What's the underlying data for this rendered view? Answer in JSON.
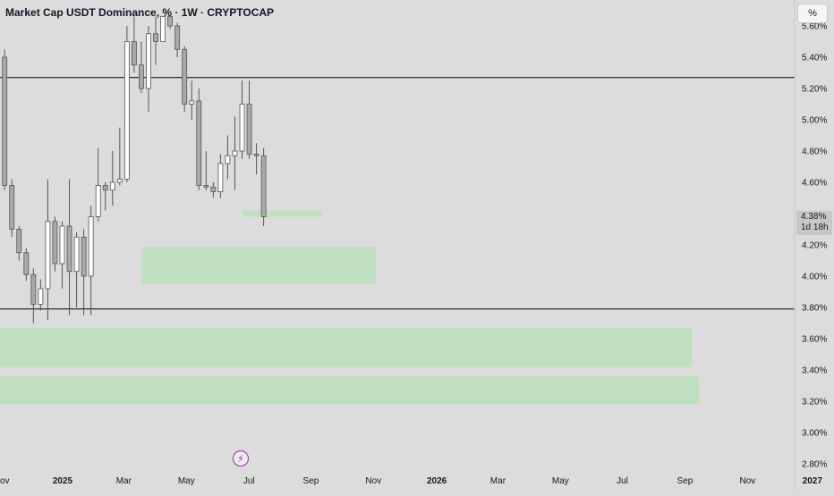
{
  "header": {
    "title": "Market Cap USDT Dominance, % · 1W · CRYPTOCAP"
  },
  "controls": {
    "scale_label": "%",
    "event_icon": "lightning-icon"
  },
  "price_badge": {
    "price": "4.38%",
    "countdown": "1d 18h"
  },
  "colors": {
    "background": "#dcdcdc",
    "up_body": "#ffffff",
    "down_body": "#a9a9a9",
    "wick": "#555555",
    "zone_fill": "#b9dfb9",
    "level_line": "#000000",
    "axis_text": "#131722",
    "event_icon": "#9c27b0"
  },
  "chart_data": {
    "type": "candlestick",
    "title": "Market Cap USDT Dominance, % · 1W · CRYPTOCAP",
    "y_ticks": [
      "2.80%",
      "3.00%",
      "3.20%",
      "3.40%",
      "3.60%",
      "3.80%",
      "4.00%",
      "4.20%",
      "4.60%",
      "4.80%",
      "5.00%",
      "5.20%",
      "5.40%",
      "5.60%"
    ],
    "y_tick_values": [
      2.8,
      3.0,
      3.2,
      3.4,
      3.6,
      3.8,
      4.0,
      4.2,
      4.6,
      4.8,
      5.0,
      5.2,
      5.4,
      5.6
    ],
    "ylim": [
      2.78,
      5.66
    ],
    "x_labels": [
      "Nov",
      "2025",
      "Mar",
      "May",
      "Jul",
      "Sep",
      "Nov",
      "2026",
      "Mar",
      "May",
      "Jul",
      "Sep",
      "Nov",
      "2027"
    ],
    "x_label_weeks": [
      -8.5,
      0,
      8.5,
      17.2,
      25.9,
      34.5,
      43.2,
      52,
      60.5,
      69.2,
      77.8,
      86.5,
      95.2,
      104.2
    ],
    "candles": [
      {
        "o": 5.4,
        "h": 5.45,
        "l": 4.55,
        "c": 4.58
      },
      {
        "o": 4.58,
        "h": 4.62,
        "l": 4.25,
        "c": 4.3
      },
      {
        "o": 4.3,
        "h": 4.32,
        "l": 4.1,
        "c": 4.15
      },
      {
        "o": 4.15,
        "h": 4.18,
        "l": 3.97,
        "c": 4.01
      },
      {
        "o": 4.01,
        "h": 4.05,
        "l": 3.7,
        "c": 3.82
      },
      {
        "o": 3.82,
        "h": 3.98,
        "l": 3.78,
        "c": 3.92
      },
      {
        "o": 3.92,
        "h": 4.62,
        "l": 3.72,
        "c": 4.35
      },
      {
        "o": 4.35,
        "h": 4.38,
        "l": 4.03,
        "c": 4.08
      },
      {
        "o": 4.08,
        "h": 4.35,
        "l": 3.92,
        "c": 4.32
      },
      {
        "o": 4.32,
        "h": 4.62,
        "l": 3.75,
        "c": 4.03
      },
      {
        "o": 4.03,
        "h": 4.28,
        "l": 3.8,
        "c": 4.25
      },
      {
        "o": 4.25,
        "h": 4.3,
        "l": 3.75,
        "c": 4.0
      },
      {
        "o": 4.0,
        "h": 4.45,
        "l": 3.75,
        "c": 4.38
      },
      {
        "o": 4.38,
        "h": 4.82,
        "l": 4.35,
        "c": 4.58
      },
      {
        "o": 4.58,
        "h": 4.6,
        "l": 4.42,
        "c": 4.55
      },
      {
        "o": 4.55,
        "h": 4.8,
        "l": 4.45,
        "c": 4.6
      },
      {
        "o": 4.6,
        "h": 4.95,
        "l": 4.58,
        "c": 4.62
      },
      {
        "o": 4.62,
        "h": 5.6,
        "l": 4.6,
        "c": 5.5
      },
      {
        "o": 5.5,
        "h": 5.66,
        "l": 5.3,
        "c": 5.35
      },
      {
        "o": 5.35,
        "h": 5.5,
        "l": 5.17,
        "c": 5.2
      },
      {
        "o": 5.2,
        "h": 5.6,
        "l": 5.05,
        "c": 5.55
      },
      {
        "o": 5.55,
        "h": 5.66,
        "l": 5.35,
        "c": 5.5
      },
      {
        "o": 5.5,
        "h": 5.66,
        "l": 5.5,
        "c": 5.66
      },
      {
        "o": 5.66,
        "h": 5.66,
        "l": 5.58,
        "c": 5.6
      },
      {
        "o": 5.6,
        "h": 5.62,
        "l": 5.4,
        "c": 5.45
      },
      {
        "o": 5.45,
        "h": 5.47,
        "l": 5.05,
        "c": 5.1
      },
      {
        "o": 5.1,
        "h": 5.25,
        "l": 5.0,
        "c": 5.12
      },
      {
        "o": 5.12,
        "h": 5.2,
        "l": 4.55,
        "c": 4.58
      },
      {
        "o": 4.58,
        "h": 4.8,
        "l": 4.55,
        "c": 4.57
      },
      {
        "o": 4.57,
        "h": 4.6,
        "l": 4.5,
        "c": 4.54
      },
      {
        "o": 4.54,
        "h": 4.78,
        "l": 4.5,
        "c": 4.72
      },
      {
        "o": 4.72,
        "h": 4.9,
        "l": 4.62,
        "c": 4.77
      },
      {
        "o": 4.77,
        "h": 5.02,
        "l": 4.55,
        "c": 4.8
      },
      {
        "o": 4.8,
        "h": 5.25,
        "l": 4.75,
        "c": 5.1
      },
      {
        "o": 5.1,
        "h": 5.25,
        "l": 4.75,
        "c": 4.78
      },
      {
        "o": 4.78,
        "h": 4.85,
        "l": 4.65,
        "c": 4.77
      },
      {
        "o": 4.77,
        "h": 4.82,
        "l": 4.32,
        "c": 4.38
      }
    ],
    "horizontal_levels": [
      5.27,
      3.79
    ],
    "zones": [
      {
        "week_start": 25,
        "week_end": 36,
        "low": 4.38,
        "high": 4.42
      },
      {
        "week_start": 11,
        "week_end": 43.5,
        "low": 3.95,
        "high": 4.19
      },
      {
        "week_start": -10,
        "week_end": 87.5,
        "low": 3.42,
        "high": 3.67
      },
      {
        "week_start": -10,
        "week_end": 88.5,
        "low": 3.18,
        "high": 3.36
      }
    ],
    "last_price": "4.38%",
    "countdown": "1d 18h",
    "grid": false,
    "legend": "none"
  }
}
